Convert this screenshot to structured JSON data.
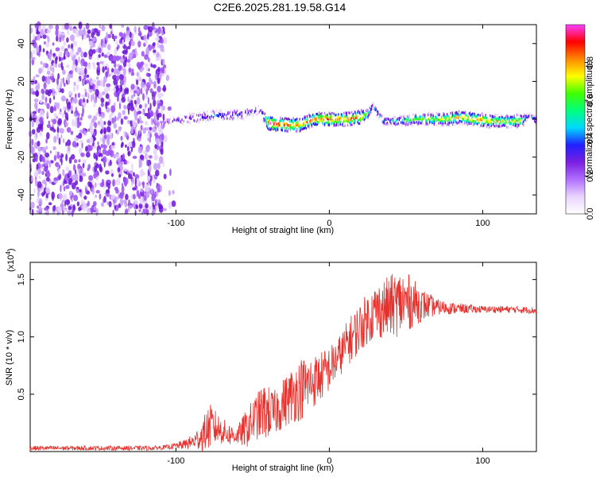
{
  "title": "C2E6.2025.281.19.58.G14",
  "colors": {
    "snr_line": "#e8302c",
    "axis": "#000000",
    "low": "#9a3cf0",
    "colormap": [
      "#ffffff",
      "#e9d4ff",
      "#b070ff",
      "#7a1fe0",
      "#2020ff",
      "#00d8ff",
      "#00ff7f",
      "#40ff00",
      "#ffff00",
      "#ff8800",
      "#ff0000",
      "#ff40ff"
    ]
  },
  "chart_data": [
    {
      "type": "heatmap",
      "title": "C2E6.2025.281.19.58.G14",
      "xlabel": "Height of straight line (km)",
      "ylabel": "Frequency (Hz)",
      "xlim": [
        -195,
        135
      ],
      "ylim": [
        -50,
        50
      ],
      "xticks": [
        "-100",
        "0",
        "100"
      ],
      "xtick_values": [
        -100,
        0,
        100
      ],
      "yticks": [
        "-40",
        "-20",
        "0",
        "20",
        "40"
      ],
      "ytick_values": [
        -40,
        -20,
        0,
        20,
        40
      ],
      "colorbar": {
        "label": "Normalized spectral amplitude",
        "range": [
          0,
          1
        ],
        "ticks": [
          "0.0",
          "0.2",
          "0.4",
          "0.6",
          "0.8"
        ],
        "tick_values": [
          0.0,
          0.2,
          0.4,
          0.6,
          0.8
        ]
      },
      "noise_region_x": [
        -195,
        -108
      ],
      "ridge": {
        "x": [
          -115,
          -105,
          -95,
          -85,
          -75,
          -65,
          -55,
          -46,
          -40,
          -30,
          -20,
          -10,
          0,
          10,
          20,
          25,
          28,
          35,
          45,
          55,
          65,
          75,
          85,
          95,
          105,
          115,
          125,
          130,
          135
        ],
        "freq": [
          -3,
          -1,
          0,
          1,
          2,
          2,
          3,
          5,
          -2,
          -3,
          -3,
          0,
          0,
          0,
          1,
          3,
          7,
          -1,
          -1,
          0,
          0,
          0,
          1,
          0,
          -1,
          -1,
          -1,
          2,
          -1
        ],
        "amplitude": [
          0.15,
          0.25,
          0.32,
          0.35,
          0.38,
          0.38,
          0.35,
          0.3,
          0.95,
          0.92,
          0.85,
          0.9,
          0.9,
          0.85,
          0.9,
          0.55,
          0.4,
          0.45,
          0.55,
          0.65,
          0.7,
          0.75,
          0.8,
          0.85,
          0.8,
          0.75,
          0.75,
          0.3,
          0.5
        ]
      },
      "grid": false
    },
    {
      "type": "line",
      "xlabel": "Height of straight line (km)",
      "ylabel": "SNR (10 * v/v)",
      "y_multiplier": "(x10",
      "y_multiplier_exp": "4",
      "y_multiplier_close": ")",
      "xlim": [
        -195,
        135
      ],
      "ylim": [
        0,
        1.65
      ],
      "xticks": [
        "-100",
        "0",
        "100"
      ],
      "xtick_values": [
        -100,
        0,
        100
      ],
      "yticks": [
        "0.5",
        "1.0",
        "1.5"
      ],
      "ytick_values": [
        0.5,
        1.0,
        1.5
      ],
      "envelope": {
        "x": [
          -195,
          -170,
          -150,
          -130,
          -115,
          -105,
          -95,
          -88,
          -82,
          -78,
          -72,
          -66,
          -60,
          -54,
          -48,
          -42,
          -36,
          -30,
          -24,
          -18,
          -12,
          -6,
          0,
          6,
          12,
          18,
          24,
          30,
          36,
          42,
          48,
          54,
          60,
          70,
          80,
          100,
          120,
          135
        ],
        "mean": [
          0.03,
          0.03,
          0.03,
          0.03,
          0.03,
          0.04,
          0.06,
          0.09,
          0.15,
          0.22,
          0.2,
          0.15,
          0.14,
          0.2,
          0.3,
          0.35,
          0.33,
          0.42,
          0.5,
          0.55,
          0.6,
          0.65,
          0.72,
          0.82,
          0.95,
          1.05,
          1.15,
          1.22,
          1.25,
          1.28,
          1.3,
          1.3,
          1.28,
          1.26,
          1.25,
          1.24,
          1.24,
          1.23
        ],
        "spread": [
          0.02,
          0.02,
          0.02,
          0.02,
          0.02,
          0.02,
          0.04,
          0.07,
          0.15,
          0.2,
          0.13,
          0.1,
          0.08,
          0.17,
          0.2,
          0.25,
          0.2,
          0.22,
          0.25,
          0.28,
          0.24,
          0.22,
          0.2,
          0.18,
          0.2,
          0.22,
          0.22,
          0.25,
          0.26,
          0.28,
          0.3,
          0.22,
          0.15,
          0.07,
          0.05,
          0.03,
          0.03,
          0.03
        ]
      },
      "color": "#e8302c",
      "grid": false
    }
  ]
}
